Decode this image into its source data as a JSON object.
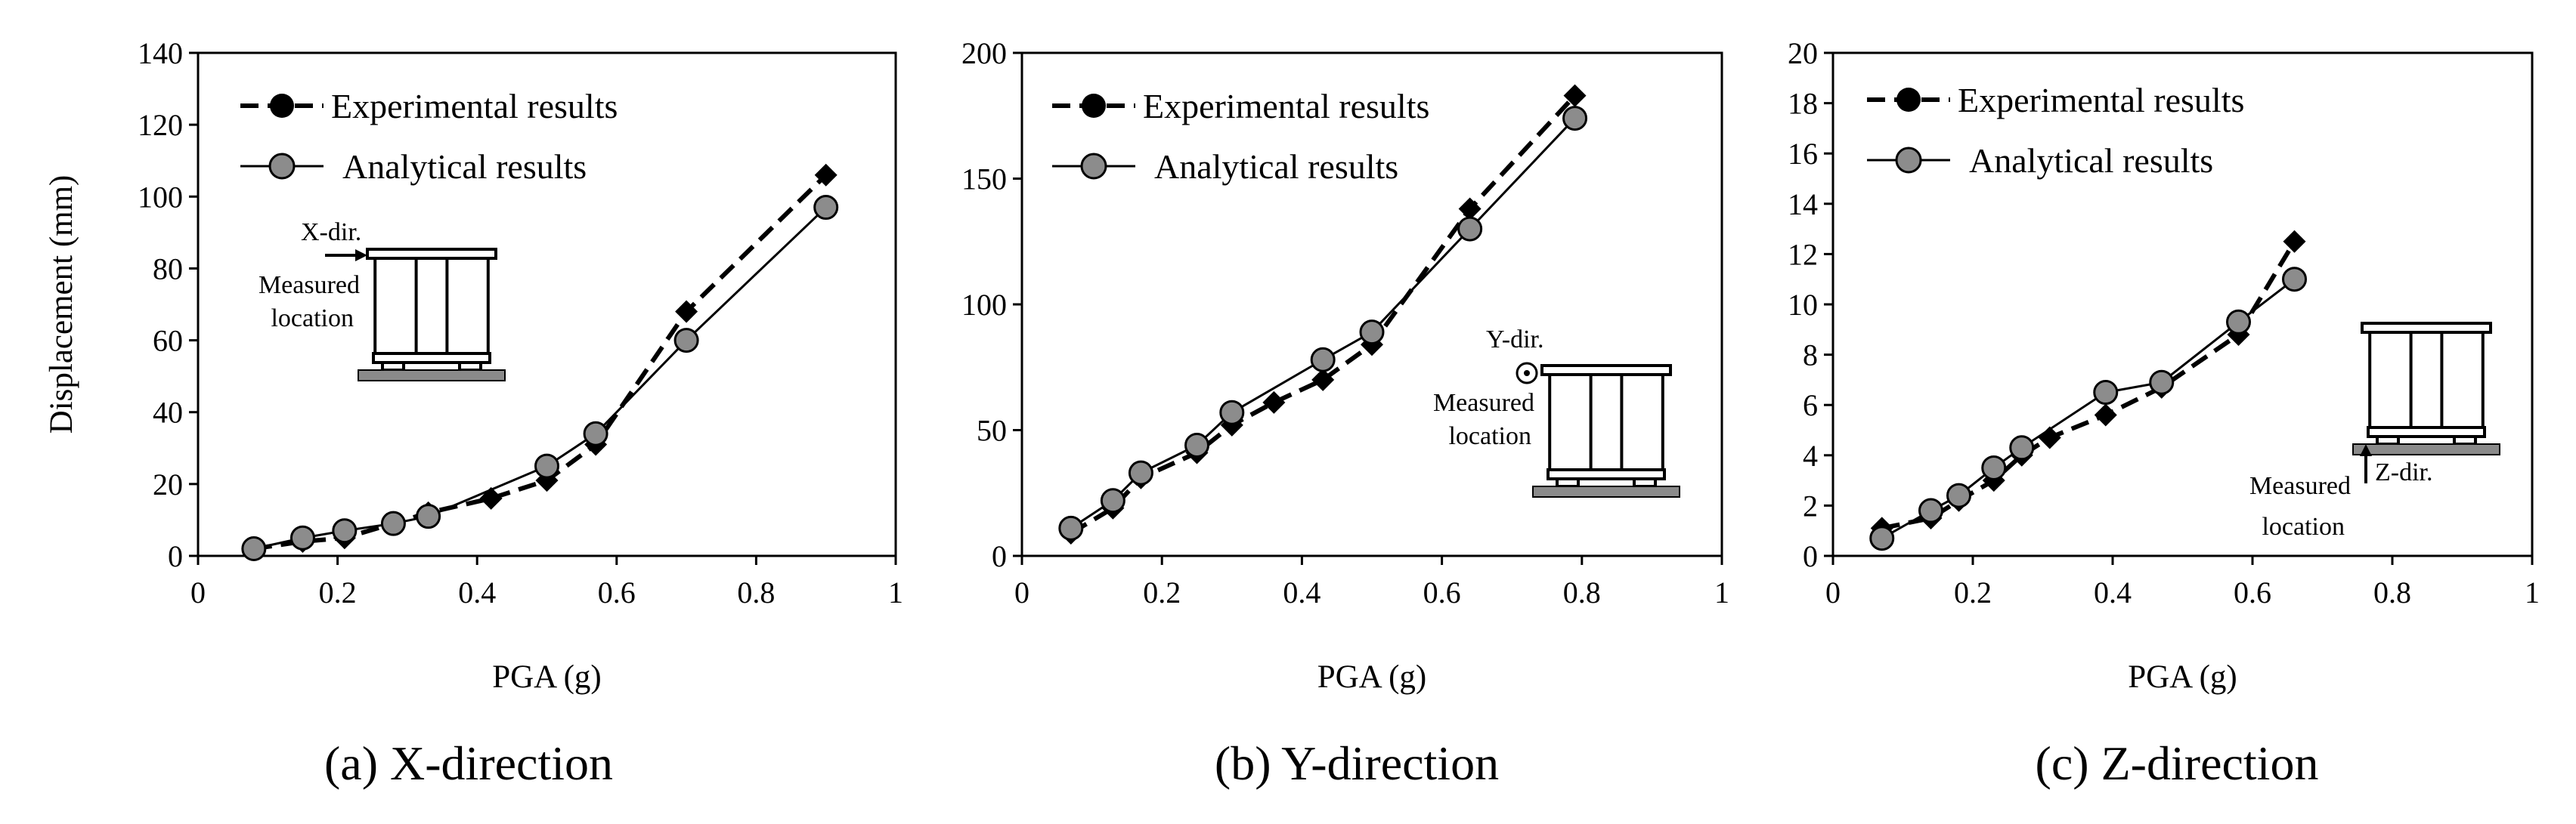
{
  "chart_data": [
    {
      "type": "line",
      "caption": "(a) X-direction",
      "xlabel": "PGA (g)",
      "ylabel": "Displacement (mm)",
      "xlim": [
        0,
        1
      ],
      "ylim": [
        0,
        140
      ],
      "xticks": [
        "0",
        "0.2",
        "0.4",
        "0.6",
        "0.8",
        "1"
      ],
      "yticks": [
        "0",
        "20",
        "40",
        "60",
        "80",
        "100",
        "120",
        "140"
      ],
      "legend": [
        "Experimental results",
        "Analytical results"
      ],
      "inset_labels": [
        "X-dir.",
        "Measured",
        "location"
      ],
      "series": [
        {
          "name": "Experimental results",
          "marker": "diamond",
          "style": "dashed",
          "x": [
            0.08,
            0.15,
            0.21,
            0.28,
            0.33,
            0.42,
            0.5,
            0.57,
            0.7,
            0.9
          ],
          "y": [
            2,
            4,
            5,
            9,
            12,
            16,
            21,
            31,
            68,
            106
          ]
        },
        {
          "name": "Analytical results",
          "marker": "circle",
          "style": "solid",
          "x": [
            0.08,
            0.15,
            0.21,
            0.28,
            0.33,
            0.5,
            0.57,
            0.7,
            0.9
          ],
          "y": [
            2,
            5,
            7,
            9,
            11,
            25,
            34,
            60,
            97
          ]
        }
      ]
    },
    {
      "type": "line",
      "caption": "(b) Y-direction",
      "xlabel": "PGA (g)",
      "ylabel": "",
      "xlim": [
        0,
        1
      ],
      "ylim": [
        0,
        200
      ],
      "xticks": [
        "0",
        "0.2",
        "0.4",
        "0.6",
        "0.8",
        "1"
      ],
      "yticks": [
        "0",
        "50",
        "100",
        "150",
        "200"
      ],
      "legend": [
        "Experimental results",
        "Analytical results"
      ],
      "inset_labels": [
        "Y-dir.",
        "Measured",
        "location"
      ],
      "series": [
        {
          "name": "Experimental results",
          "marker": "diamond",
          "style": "dashed",
          "x": [
            0.07,
            0.13,
            0.17,
            0.25,
            0.3,
            0.36,
            0.43,
            0.5,
            0.64,
            0.79
          ],
          "y": [
            9,
            19,
            31,
            41,
            52,
            61,
            70,
            84,
            138,
            183
          ]
        },
        {
          "name": "Analytical results",
          "marker": "circle",
          "style": "solid",
          "x": [
            0.07,
            0.13,
            0.17,
            0.25,
            0.3,
            0.43,
            0.5,
            0.64,
            0.79
          ],
          "y": [
            11,
            22,
            33,
            44,
            57,
            78,
            89,
            130,
            174
          ]
        }
      ]
    },
    {
      "type": "line",
      "caption": "(c) Z-direction",
      "xlabel": "PGA (g)",
      "ylabel": "",
      "xlim": [
        0,
        1
      ],
      "ylim": [
        0,
        20
      ],
      "xticks": [
        "0",
        "0.2",
        "0.4",
        "0.6",
        "0.8",
        "1"
      ],
      "yticks": [
        "0",
        "2",
        "4",
        "6",
        "8",
        "10",
        "12",
        "14",
        "16",
        "18",
        "20"
      ],
      "legend": [
        "Experimental results",
        "Analytical results"
      ],
      "inset_labels": [
        "Z-dir.",
        "Measured",
        "location"
      ],
      "series": [
        {
          "name": "Experimental results",
          "marker": "diamond",
          "style": "dashed",
          "x": [
            0.07,
            0.14,
            0.18,
            0.23,
            0.27,
            0.31,
            0.39,
            0.47,
            0.58,
            0.66
          ],
          "y": [
            1.1,
            1.5,
            2.2,
            3.0,
            4.0,
            4.7,
            5.6,
            6.7,
            8.8,
            12.5
          ]
        },
        {
          "name": "Analytical results",
          "marker": "circle",
          "style": "solid",
          "x": [
            0.07,
            0.14,
            0.18,
            0.23,
            0.27,
            0.39,
            0.47,
            0.58,
            0.66
          ],
          "y": [
            0.7,
            1.8,
            2.4,
            3.5,
            4.3,
            6.5,
            6.9,
            9.3,
            11.0
          ]
        }
      ]
    }
  ]
}
